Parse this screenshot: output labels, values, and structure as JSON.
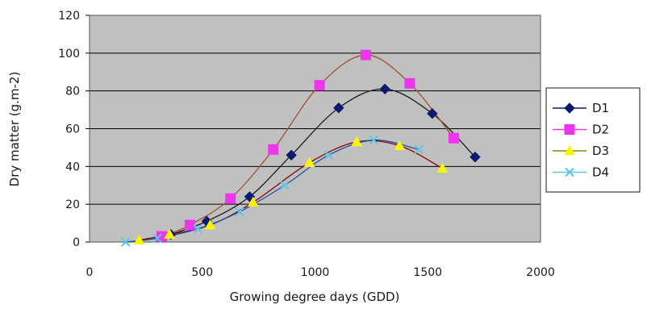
{
  "chart_data": {
    "type": "scatter",
    "xlabel": "Growing degree days (GDD)",
    "ylabel": "Dry matter (g.m-2)",
    "xlim": [
      0,
      2000
    ],
    "ylim": [
      0,
      120
    ],
    "xticks": [
      "0",
      "500",
      "1000",
      "1500",
      "2000"
    ],
    "yticks": [
      "0",
      "20",
      "40",
      "60",
      "80",
      "100",
      "120"
    ],
    "grid": "horizontal",
    "plot_background": "#c0c0c0",
    "legend_position": "right",
    "series": [
      {
        "name": "D1",
        "color": "#0b1a6e",
        "marker": "diamond",
        "trend_color": "#1a1a1a",
        "x": [
          360,
          520,
          710,
          895,
          1105,
          1310,
          1520,
          1710
        ],
        "y": [
          4,
          11,
          24,
          46,
          71,
          81,
          68,
          45
        ]
      },
      {
        "name": "D2",
        "color": "#ee35ee",
        "marker": "square",
        "trend_color": "#a0522d",
        "x": [
          320,
          445,
          625,
          815,
          1020,
          1225,
          1420,
          1615
        ],
        "y": [
          3,
          9,
          23,
          49,
          83,
          99,
          84,
          55
        ]
      },
      {
        "name": "D3",
        "color": "#f7f700",
        "marker": "triangle",
        "trend_color": "#8b0000",
        "x": [
          220,
          355,
          535,
          725,
          975,
          1185,
          1375,
          1565
        ],
        "y": [
          1,
          4,
          9,
          21,
          42,
          53,
          51,
          39
        ]
      },
      {
        "name": "D4",
        "color": "#5bc8e8",
        "marker": "x",
        "trend_color": "#1f4fa0",
        "x": [
          160,
          300,
          480,
          665,
          865,
          1060,
          1260,
          1460
        ],
        "y": [
          0,
          2,
          7,
          16,
          30,
          46,
          54,
          49
        ]
      }
    ]
  }
}
